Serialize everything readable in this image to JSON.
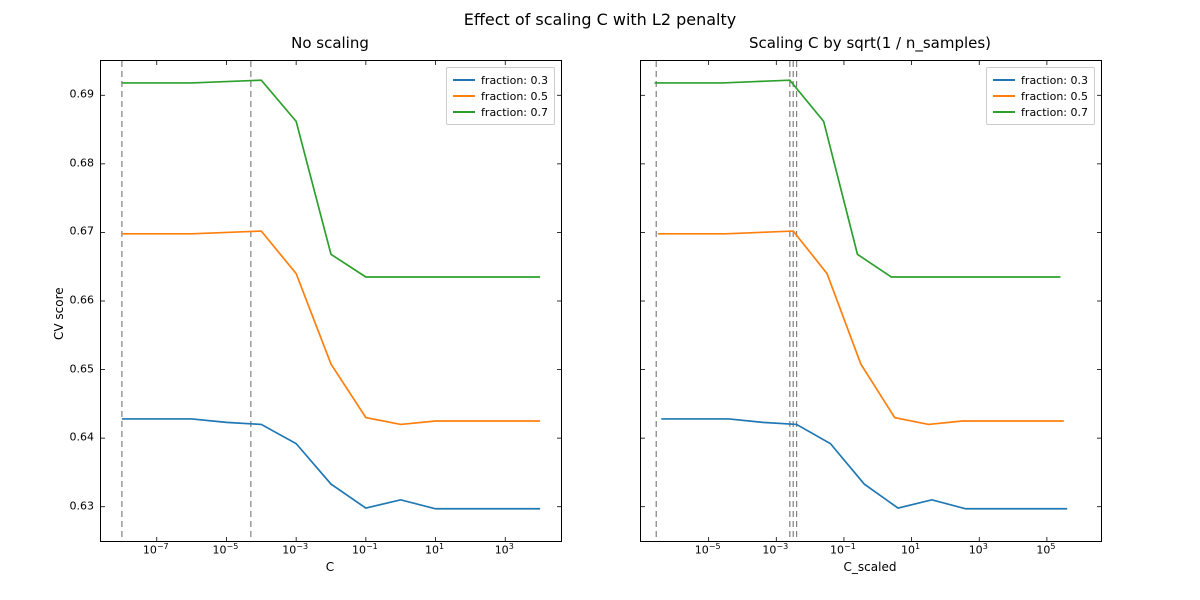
{
  "suptitle": "Effect of scaling C with L2 penalty",
  "panels": [
    {
      "title": "No scaling",
      "xlabel": "C",
      "ylabel": "CV score",
      "ymin": 0.625,
      "ymax": 0.695,
      "yticks": [
        0.63,
        0.64,
        0.65,
        0.66,
        0.67,
        0.68,
        0.69
      ],
      "xlog_min": -8.6,
      "xlog_max": 4.6,
      "xtick_exponents": [
        -7,
        -5,
        -3,
        -1,
        1,
        3
      ],
      "series": [
        {
          "label": "fraction: 0.3",
          "color": "#1f77b4",
          "x": [
            -8,
            -7,
            -6,
            -5,
            -4,
            -3,
            -2,
            -1,
            0,
            1,
            2,
            3,
            4
          ],
          "y": [
            0.6428,
            0.6428,
            0.6428,
            0.6423,
            0.642,
            0.6392,
            0.6333,
            0.6298,
            0.631,
            0.6297,
            0.6297,
            0.6297,
            0.6297
          ]
        },
        {
          "label": "fraction: 0.5",
          "color": "#ff7f0e",
          "x": [
            -8,
            -7,
            -6,
            -5,
            -4,
            -3,
            -2,
            -1,
            0,
            1,
            2,
            3,
            4
          ],
          "y": [
            0.6698,
            0.6698,
            0.6698,
            0.67,
            0.6702,
            0.664,
            0.6508,
            0.643,
            0.642,
            0.6425,
            0.6425,
            0.6425,
            0.6425
          ]
        },
        {
          "label": "fraction: 0.7",
          "color": "#2ca02c",
          "x": [
            -8,
            -7,
            -6,
            -5,
            -4,
            -3,
            -2,
            -1,
            0,
            1,
            2,
            3,
            4
          ],
          "y": [
            0.6918,
            0.6918,
            0.6918,
            0.692,
            0.6922,
            0.6862,
            0.6668,
            0.6635,
            0.6635,
            0.6635,
            0.6635,
            0.6635,
            0.6635
          ]
        }
      ],
      "vlines": [
        {
          "x": -8.0,
          "color": "#808080"
        },
        {
          "x": -4.3,
          "color": "#808080"
        }
      ]
    },
    {
      "title": "Scaling C by sqrt(1 / n_samples)",
      "xlabel": "C_scaled",
      "ylabel": "",
      "ymin": 0.625,
      "ymax": 0.695,
      "yticks": [],
      "xlog_min": -7.0,
      "xlog_max": 6.6,
      "xtick_exponents": [
        -5,
        -3,
        -1,
        1,
        3,
        5
      ],
      "series": [
        {
          "label": "fraction: 0.3",
          "color": "#1f77b4",
          "x": [
            -6.4,
            -5.4,
            -4.4,
            -3.4,
            -2.4,
            -1.4,
            -0.4,
            0.6,
            1.6,
            2.6,
            3.6,
            4.6,
            5.6
          ],
          "y": [
            0.6428,
            0.6428,
            0.6428,
            0.6423,
            0.642,
            0.6392,
            0.6333,
            0.6298,
            0.631,
            0.6297,
            0.6297,
            0.6297,
            0.6297
          ]
        },
        {
          "label": "fraction: 0.5",
          "color": "#ff7f0e",
          "x": [
            -6.5,
            -5.5,
            -4.5,
            -3.5,
            -2.5,
            -1.5,
            -0.5,
            0.5,
            1.5,
            2.5,
            3.5,
            4.5,
            5.5
          ],
          "y": [
            0.6698,
            0.6698,
            0.6698,
            0.67,
            0.6702,
            0.664,
            0.6508,
            0.643,
            0.642,
            0.6425,
            0.6425,
            0.6425,
            0.6425
          ]
        },
        {
          "label": "fraction: 0.7",
          "color": "#2ca02c",
          "x": [
            -6.6,
            -5.6,
            -4.6,
            -3.6,
            -2.6,
            -1.6,
            -0.6,
            0.4,
            1.4,
            2.4,
            3.4,
            4.4,
            5.4
          ],
          "y": [
            0.6918,
            0.6918,
            0.6918,
            0.692,
            0.6922,
            0.6862,
            0.6668,
            0.6635,
            0.6635,
            0.6635,
            0.6635,
            0.6635,
            0.6635
          ]
        }
      ],
      "vlines": [
        {
          "x": -6.55,
          "color": "#808080"
        },
        {
          "x": -2.4,
          "color": "#808080"
        },
        {
          "x": -2.5,
          "color": "#808080"
        },
        {
          "x": -2.6,
          "color": "#808080"
        }
      ]
    }
  ]
}
